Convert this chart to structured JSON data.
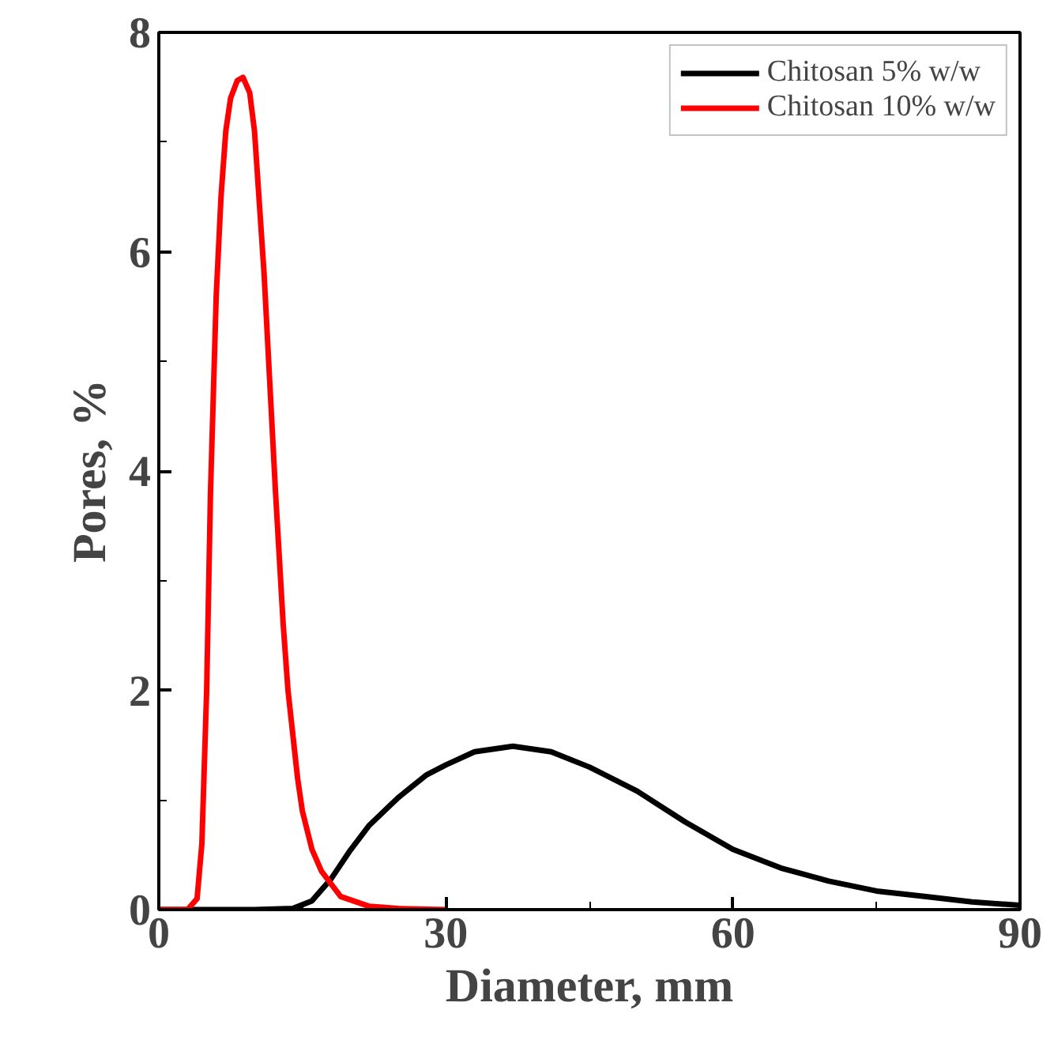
{
  "chart_data": {
    "type": "line",
    "xlabel": "Diameter, mm",
    "ylabel": "Pores, %",
    "xlim": [
      0,
      90
    ],
    "ylim": [
      0,
      8
    ],
    "xticks": [
      0,
      {
        "value": 15,
        "label": null
      },
      30,
      {
        "value": 45,
        "label": null
      },
      60,
      {
        "value": 75,
        "label": null
      },
      90
    ],
    "yticks": [
      0,
      {
        "value": 1,
        "label": null
      },
      2,
      {
        "value": 3,
        "label": null
      },
      4,
      {
        "value": 5,
        "label": null
      },
      6,
      {
        "value": 7,
        "label": null
      },
      8
    ],
    "grid": false,
    "legend": "top right",
    "marker": "none",
    "line_style": "solid",
    "series": [
      {
        "name": "Chitosan 5% w/w",
        "color": "#000000",
        "x": [
          0,
          10,
          14,
          16,
          18,
          20,
          22,
          25,
          28,
          30,
          33,
          37,
          41,
          45,
          50,
          55,
          60,
          65,
          70,
          75,
          80,
          85,
          90
        ],
        "values": [
          0,
          0,
          0.01,
          0.08,
          0.28,
          0.54,
          0.77,
          1.02,
          1.23,
          1.32,
          1.44,
          1.49,
          1.44,
          1.3,
          1.08,
          0.8,
          0.55,
          0.38,
          0.26,
          0.17,
          0.12,
          0.07,
          0.04
        ]
      },
      {
        "name": "Chitosan 10% w/w",
        "color": "#ff0000",
        "x": [
          0,
          3,
          4,
          4.5,
          5,
          5.4,
          6,
          6.5,
          7,
          7.5,
          8.2,
          8.8,
          9.5,
          10,
          11,
          12.2,
          13,
          13.5,
          14.5,
          15,
          16,
          17,
          19,
          22,
          25,
          30
        ],
        "values": [
          0,
          0,
          0.1,
          0.6,
          2.0,
          3.8,
          5.6,
          6.5,
          7.1,
          7.4,
          7.56,
          7.59,
          7.45,
          7.1,
          5.8,
          3.8,
          2.6,
          2.0,
          1.2,
          0.9,
          0.55,
          0.35,
          0.12,
          0.03,
          0.01,
          0
        ]
      }
    ]
  }
}
